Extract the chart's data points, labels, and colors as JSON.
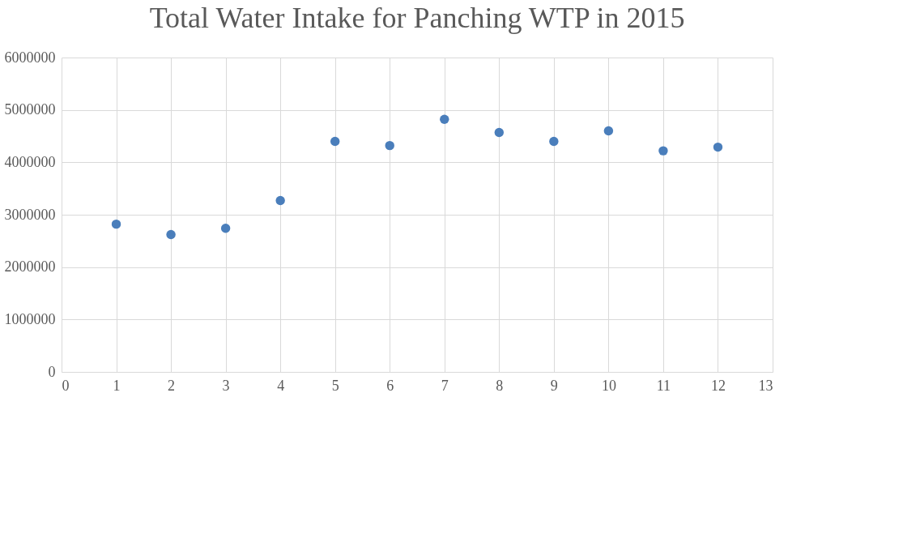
{
  "chart_data": {
    "type": "scatter",
    "title": "Total Water Intake for Panching WTP in 2015",
    "x": [
      1,
      2,
      3,
      4,
      5,
      6,
      7,
      8,
      9,
      10,
      11,
      12
    ],
    "series": [
      {
        "color": "#4a7ebb",
        "values": [
          2820000,
          2620000,
          2740000,
          3270000,
          4400000,
          4320000,
          4820000,
          4570000,
          4400000,
          4600000,
          4220000,
          4290000
        ]
      }
    ],
    "xlim": [
      0,
      13
    ],
    "xticks": [
      0,
      1,
      2,
      3,
      4,
      5,
      6,
      7,
      8,
      9,
      10,
      11,
      12,
      13
    ],
    "ylim": [
      0,
      6000000
    ],
    "yticks": [
      0,
      1000000,
      2000000,
      3000000,
      4000000,
      5000000,
      6000000
    ],
    "grid": true,
    "marker": "circle"
  }
}
